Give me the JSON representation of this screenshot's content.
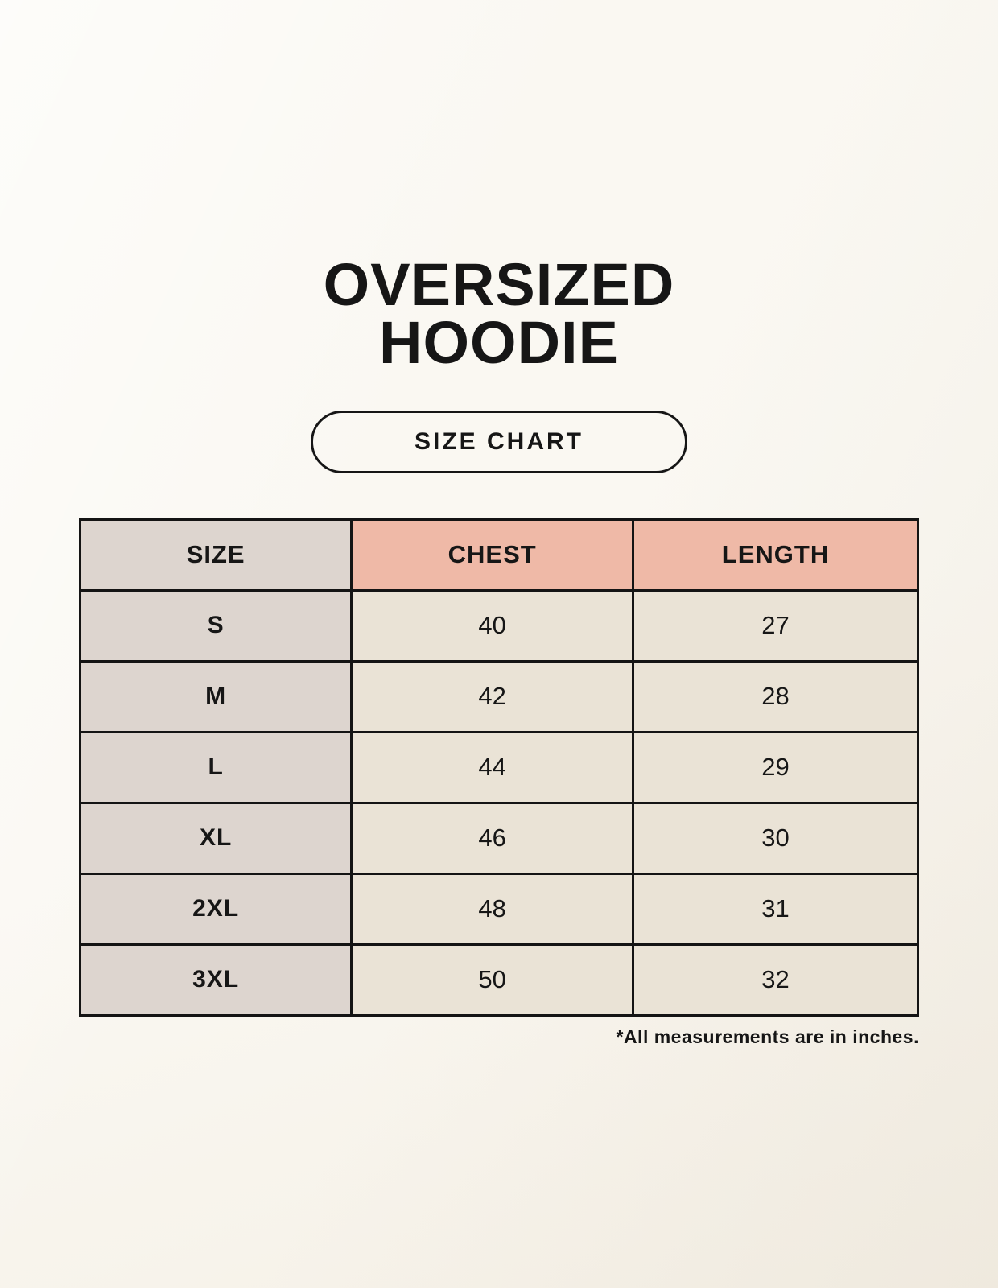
{
  "page": {
    "title_line1": "OVERSIZED",
    "title_line2": "HOODIE",
    "button_label": "SIZE CHART",
    "footnote": "*All measurements are in inches."
  },
  "size_chart": {
    "columns": [
      "SIZE",
      "CHEST",
      "LENGTH"
    ],
    "rows": [
      {
        "size": "S",
        "chest": "40",
        "length": "27"
      },
      {
        "size": "M",
        "chest": "42",
        "length": "28"
      },
      {
        "size": "L",
        "chest": "44",
        "length": "29"
      },
      {
        "size": "XL",
        "chest": "46",
        "length": "30"
      },
      {
        "size": "2XL",
        "chest": "48",
        "length": "31"
      },
      {
        "size": "3XL",
        "chest": "50",
        "length": "32"
      }
    ],
    "units": "inches"
  },
  "colors": {
    "background": "#f8f4eb",
    "size_column": "#ddd5cf",
    "measure_header": "#efb9a7",
    "value_cell": "#eae3d6",
    "border": "#141414",
    "text": "#161616"
  }
}
